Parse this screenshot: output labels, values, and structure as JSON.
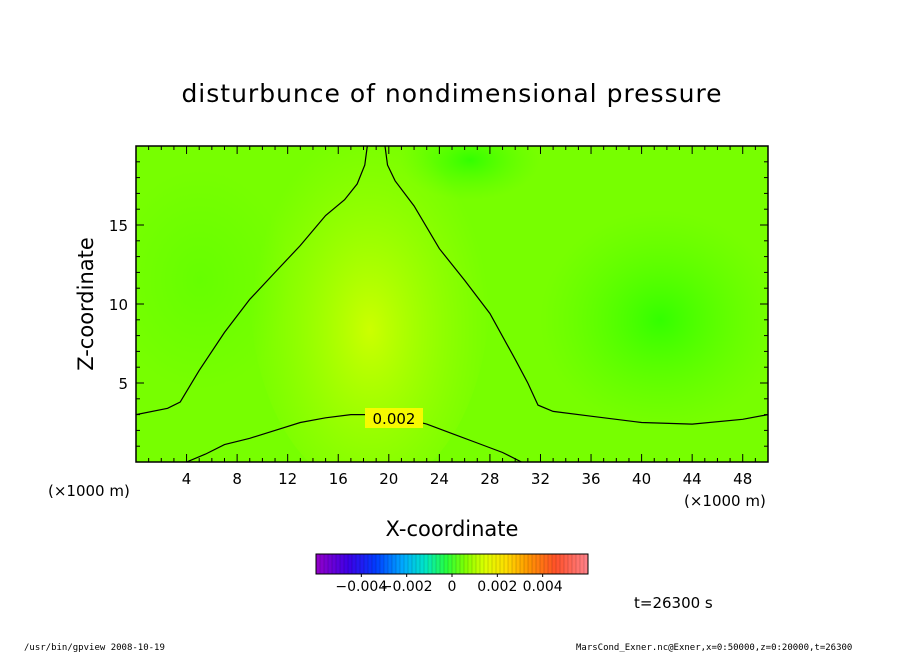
{
  "chart_data": {
    "type": "heatmap",
    "title": "disturbunce of nondimensional pressure",
    "xlabel": "X-coordinate",
    "ylabel": "Z-coordinate",
    "x_unit_left": "(×1000 m)",
    "x_unit_right": "(×1000 m)",
    "xlim": [
      0,
      50
    ],
    "ylim": [
      0,
      20
    ],
    "x_ticks": [
      4,
      8,
      12,
      16,
      20,
      24,
      28,
      32,
      36,
      40,
      44,
      48
    ],
    "y_ticks": [
      5,
      10,
      15
    ],
    "contour": {
      "label": "0.002",
      "value": 0.002,
      "upper_left": [
        [
          0,
          3.0
        ],
        [
          2.5,
          3.4
        ],
        [
          3.5,
          3.8
        ],
        [
          5,
          5.8
        ],
        [
          7,
          8.2
        ],
        [
          9,
          10.3
        ],
        [
          11,
          12.0
        ],
        [
          13,
          13.7
        ],
        [
          15,
          15.6
        ],
        [
          16.5,
          16.6
        ],
        [
          17.5,
          17.6
        ],
        [
          18.1,
          18.8
        ],
        [
          18.3,
          20
        ]
      ],
      "upper_right": [
        [
          19.7,
          20
        ],
        [
          19.9,
          18.8
        ],
        [
          20.5,
          17.8
        ],
        [
          22,
          16.2
        ],
        [
          24,
          13.5
        ],
        [
          26,
          11.5
        ],
        [
          28,
          9.4
        ],
        [
          30,
          6.5
        ],
        [
          31,
          5.0
        ],
        [
          31.8,
          3.6
        ],
        [
          33,
          3.2
        ],
        [
          36,
          2.9
        ],
        [
          40,
          2.5
        ],
        [
          44,
          2.4
        ],
        [
          48,
          2.7
        ],
        [
          50,
          3.0
        ]
      ],
      "lower": [
        [
          4,
          0
        ],
        [
          5.5,
          0.5
        ],
        [
          7,
          1.1
        ],
        [
          9,
          1.5
        ],
        [
          11,
          2.0
        ],
        [
          13,
          2.5
        ],
        [
          15,
          2.8
        ],
        [
          17,
          3.0
        ],
        [
          18.5,
          3.0
        ],
        [
          21,
          2.8
        ],
        [
          23,
          2.4
        ],
        [
          25,
          1.8
        ],
        [
          27,
          1.2
        ],
        [
          29,
          0.6
        ],
        [
          30.5,
          0
        ]
      ]
    },
    "colorbar": {
      "range": [
        -0.006,
        0.006
      ],
      "tick_labels": [
        "−0.004",
        "−0.002",
        "0",
        "0.002",
        "0.004"
      ],
      "tick_values": [
        -0.004,
        -0.002,
        0,
        0.002,
        0.004
      ]
    },
    "time_label": "t=26300 s"
  },
  "footer": {
    "left": "/usr/bin/gpview   2008-10-19",
    "right": "MarsCond_Exner.nc@Exner,x=0:50000,z=0:20000,t=26300"
  }
}
